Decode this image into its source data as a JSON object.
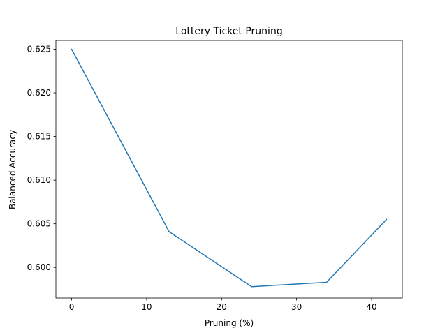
{
  "chart_data": {
    "type": "line",
    "title": "Lottery Ticket Pruning",
    "xlabel": "Pruning (%)",
    "ylabel": "Balanced Accuracy",
    "xlim": [
      -2.1,
      44.1
    ],
    "ylim": [
      0.5965,
      0.626
    ],
    "xticks": [
      0,
      10,
      20,
      30,
      40
    ],
    "xtick_labels": [
      "0",
      "10",
      "20",
      "30",
      "40"
    ],
    "yticks": [
      0.6,
      0.605,
      0.61,
      0.615,
      0.62,
      0.625
    ],
    "ytick_labels": [
      "0.600",
      "0.605",
      "0.610",
      "0.615",
      "0.620",
      "0.625"
    ],
    "grid": false,
    "series": [
      {
        "color": "#1f77b4",
        "x": [
          0,
          13,
          24,
          34,
          42
        ],
        "y": [
          0.625,
          0.6041,
          0.5978,
          0.5983,
          0.6055
        ]
      }
    ]
  }
}
